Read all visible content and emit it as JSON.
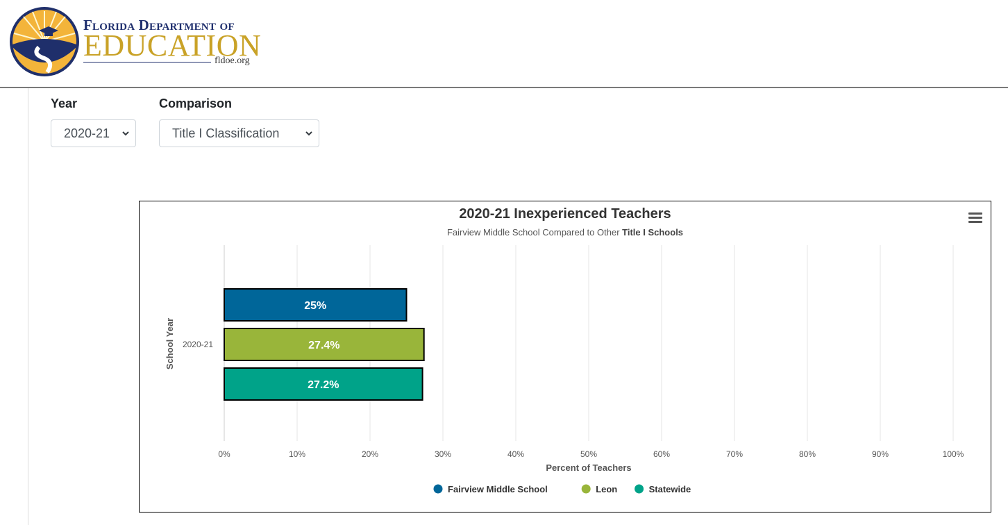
{
  "header": {
    "logo_line1": "Florida Department of",
    "logo_line2": "EDUCATION",
    "logo_url": "fldoe.org"
  },
  "filters": {
    "year_label": "Year",
    "year_value": "2020-21",
    "comparison_label": "Comparison",
    "comparison_value": "Title I Classification"
  },
  "chart": {
    "title": "2020-21 Inexperienced Teachers",
    "subtitle_prefix": "Fairview Middle School Compared to Other ",
    "subtitle_bold": "Title I Schools"
  },
  "chart_data": {
    "type": "bar",
    "orientation": "horizontal",
    "title": "2020-21 Inexperienced Teachers",
    "subtitle": "Fairview Middle School Compared to Other Title I Schools",
    "xlabel": "Percent of Teachers",
    "ylabel": "School Year",
    "categories": [
      "2020-21"
    ],
    "xlim": [
      0,
      100
    ],
    "x_ticks": [
      "0%",
      "10%",
      "20%",
      "30%",
      "40%",
      "50%",
      "60%",
      "70%",
      "80%",
      "90%",
      "100%"
    ],
    "grid": true,
    "legend_position": "bottom",
    "series": [
      {
        "name": "Fairview Middle School",
        "values": [
          25
        ],
        "label": "25%",
        "color": "#006699"
      },
      {
        "name": "Leon",
        "values": [
          27.4
        ],
        "label": "27.4%",
        "color": "#99b53a"
      },
      {
        "name": "Statewide",
        "values": [
          27.2
        ],
        "label": "27.2%",
        "color": "#00a389"
      }
    ]
  }
}
